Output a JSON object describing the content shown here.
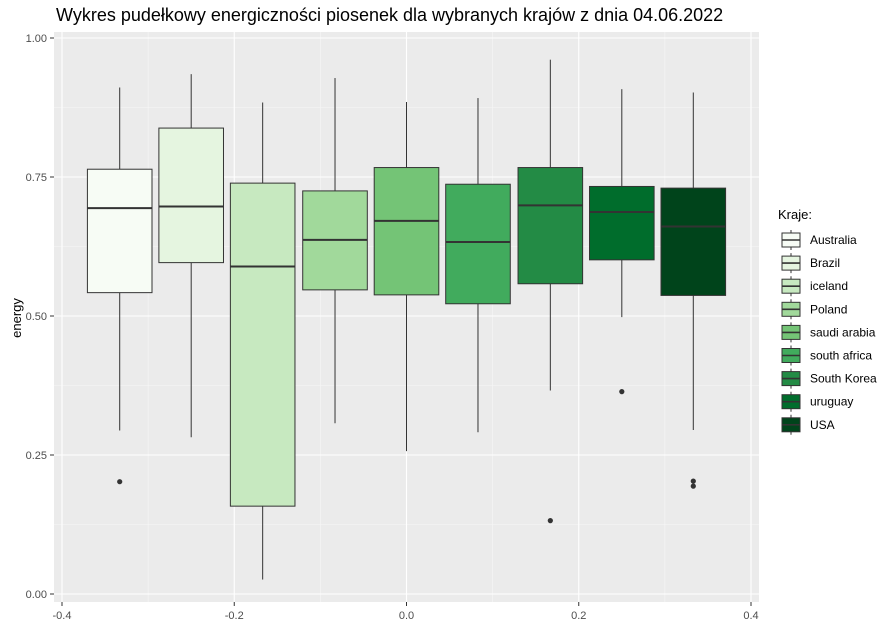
{
  "chart_data": {
    "type": "box",
    "title": "Wykres pudełkowy energiczności piosenek dla wybranych krajów z dnia 04.06.2022",
    "xlabel": "",
    "ylabel": "energy",
    "xlim": [
      -0.4,
      0.4
    ],
    "ylim": [
      0.0,
      1.0
    ],
    "x_ticks": [
      "-0.4",
      "-0.2",
      "0.0",
      "0.2",
      "0.4"
    ],
    "y_ticks": [
      "0.00",
      "0.25",
      "0.50",
      "0.75",
      "1.00"
    ],
    "grid": true,
    "legend_title": "Kraje:",
    "legend_position": "right",
    "series": [
      {
        "name": "Australia",
        "color": "#f7fcf5",
        "x_center": -0.333,
        "whisker_low": 0.294,
        "q1": 0.542,
        "median": 0.694,
        "q3": 0.764,
        "whisker_high": 0.911,
        "outliers": [
          0.202
        ]
      },
      {
        "name": "Brazil",
        "color": "#e5f5e0",
        "x_center": -0.25,
        "whisker_low": 0.282,
        "q1": 0.596,
        "median": 0.697,
        "q3": 0.838,
        "whisker_high": 0.935,
        "outliers": []
      },
      {
        "name": "iceland",
        "color": "#c7e9c0",
        "x_center": -0.167,
        "whisker_low": 0.026,
        "q1": 0.158,
        "median": 0.589,
        "q3": 0.739,
        "whisker_high": 0.884,
        "outliers": []
      },
      {
        "name": "Poland",
        "color": "#a1d99b",
        "x_center": -0.083,
        "whisker_low": 0.307,
        "q1": 0.547,
        "median": 0.637,
        "q3": 0.725,
        "whisker_high": 0.928,
        "outliers": []
      },
      {
        "name": "saudi arabia",
        "color": "#74c476",
        "x_center": 0.0,
        "whisker_low": 0.257,
        "q1": 0.538,
        "median": 0.671,
        "q3": 0.767,
        "whisker_high": 0.885,
        "outliers": []
      },
      {
        "name": "south africa",
        "color": "#41ab5d",
        "x_center": 0.083,
        "whisker_low": 0.291,
        "q1": 0.522,
        "median": 0.633,
        "q3": 0.737,
        "whisker_high": 0.892,
        "outliers": []
      },
      {
        "name": "South Korea",
        "color": "#238b45",
        "x_center": 0.167,
        "whisker_low": 0.366,
        "q1": 0.558,
        "median": 0.699,
        "q3": 0.767,
        "whisker_high": 0.961,
        "outliers": [
          0.132
        ]
      },
      {
        "name": "uruguay",
        "color": "#006d2c",
        "x_center": 0.25,
        "whisker_low": 0.498,
        "q1": 0.601,
        "median": 0.687,
        "q3": 0.733,
        "whisker_high": 0.908,
        "outliers": [
          0.364
        ]
      },
      {
        "name": "USA",
        "color": "#00441b",
        "x_center": 0.333,
        "whisker_low": 0.295,
        "q1": 0.537,
        "median": 0.661,
        "q3": 0.73,
        "whisker_high": 0.902,
        "outliers": [
          0.203,
          0.194
        ]
      }
    ]
  }
}
